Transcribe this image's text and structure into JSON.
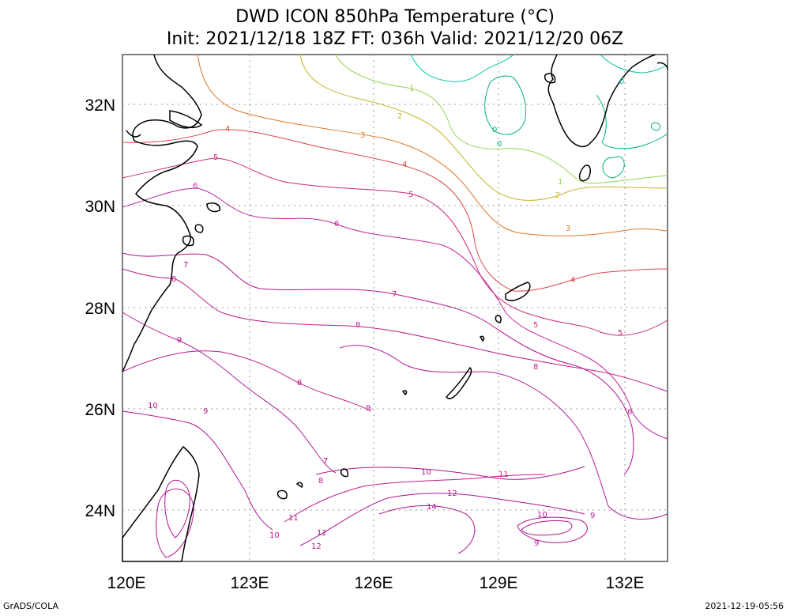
{
  "title_line1": "DWD ICON 850hPa Temperature (°C)",
  "title_line2": "Init: 2021/12/18 18Z  FT: 036h  Valid: 2021/12/20 06Z",
  "footer_left": "GrADS/COLA",
  "footer_right": "2021-12-19-05:56",
  "x_axis_labels": [
    "120E",
    "123E",
    "126E",
    "129E",
    "132E"
  ],
  "y_axis_labels": [
    "32N",
    "30N",
    "28N",
    "26N",
    "24N"
  ],
  "contour_labels": [
    {
      "text": "0"
    },
    {
      "text": "0"
    },
    {
      "text": "0"
    },
    {
      "text": "1"
    },
    {
      "text": "1"
    },
    {
      "text": "2"
    },
    {
      "text": "2"
    },
    {
      "text": "3"
    },
    {
      "text": "3"
    },
    {
      "text": "4"
    },
    {
      "text": "4"
    },
    {
      "text": "4"
    },
    {
      "text": "5"
    },
    {
      "text": "5"
    },
    {
      "text": "5"
    },
    {
      "text": "5"
    },
    {
      "text": "6"
    },
    {
      "text": "6"
    },
    {
      "text": "6"
    },
    {
      "text": "7"
    },
    {
      "text": "7"
    },
    {
      "text": "7"
    },
    {
      "text": "8"
    },
    {
      "text": "8"
    },
    {
      "text": "8"
    },
    {
      "text": "8"
    },
    {
      "text": "8"
    },
    {
      "text": "9"
    },
    {
      "text": "9"
    },
    {
      "text": "9"
    },
    {
      "text": "9"
    },
    {
      "text": "9"
    },
    {
      "text": "10"
    },
    {
      "text": "10"
    },
    {
      "text": "10"
    },
    {
      "text": "10"
    },
    {
      "text": "11"
    },
    {
      "text": "11"
    },
    {
      "text": "12"
    },
    {
      "text": "12"
    },
    {
      "text": "12"
    },
    {
      "text": "14"
    }
  ],
  "colors": {
    "c0": "#00b46e",
    "c0b": "#00c8a0",
    "c1": "#96d250",
    "c2": "#c8b428",
    "c3": "#e07828",
    "c4": "#e04646",
    "c5": "#cc2878",
    "c6": "#c0289e",
    "c7": "#b4148c",
    "c8": "#c01e8c",
    "c9": "#b41e96",
    "c10": "#b4148c",
    "grid": "#999999",
    "coast": "#000000"
  }
}
